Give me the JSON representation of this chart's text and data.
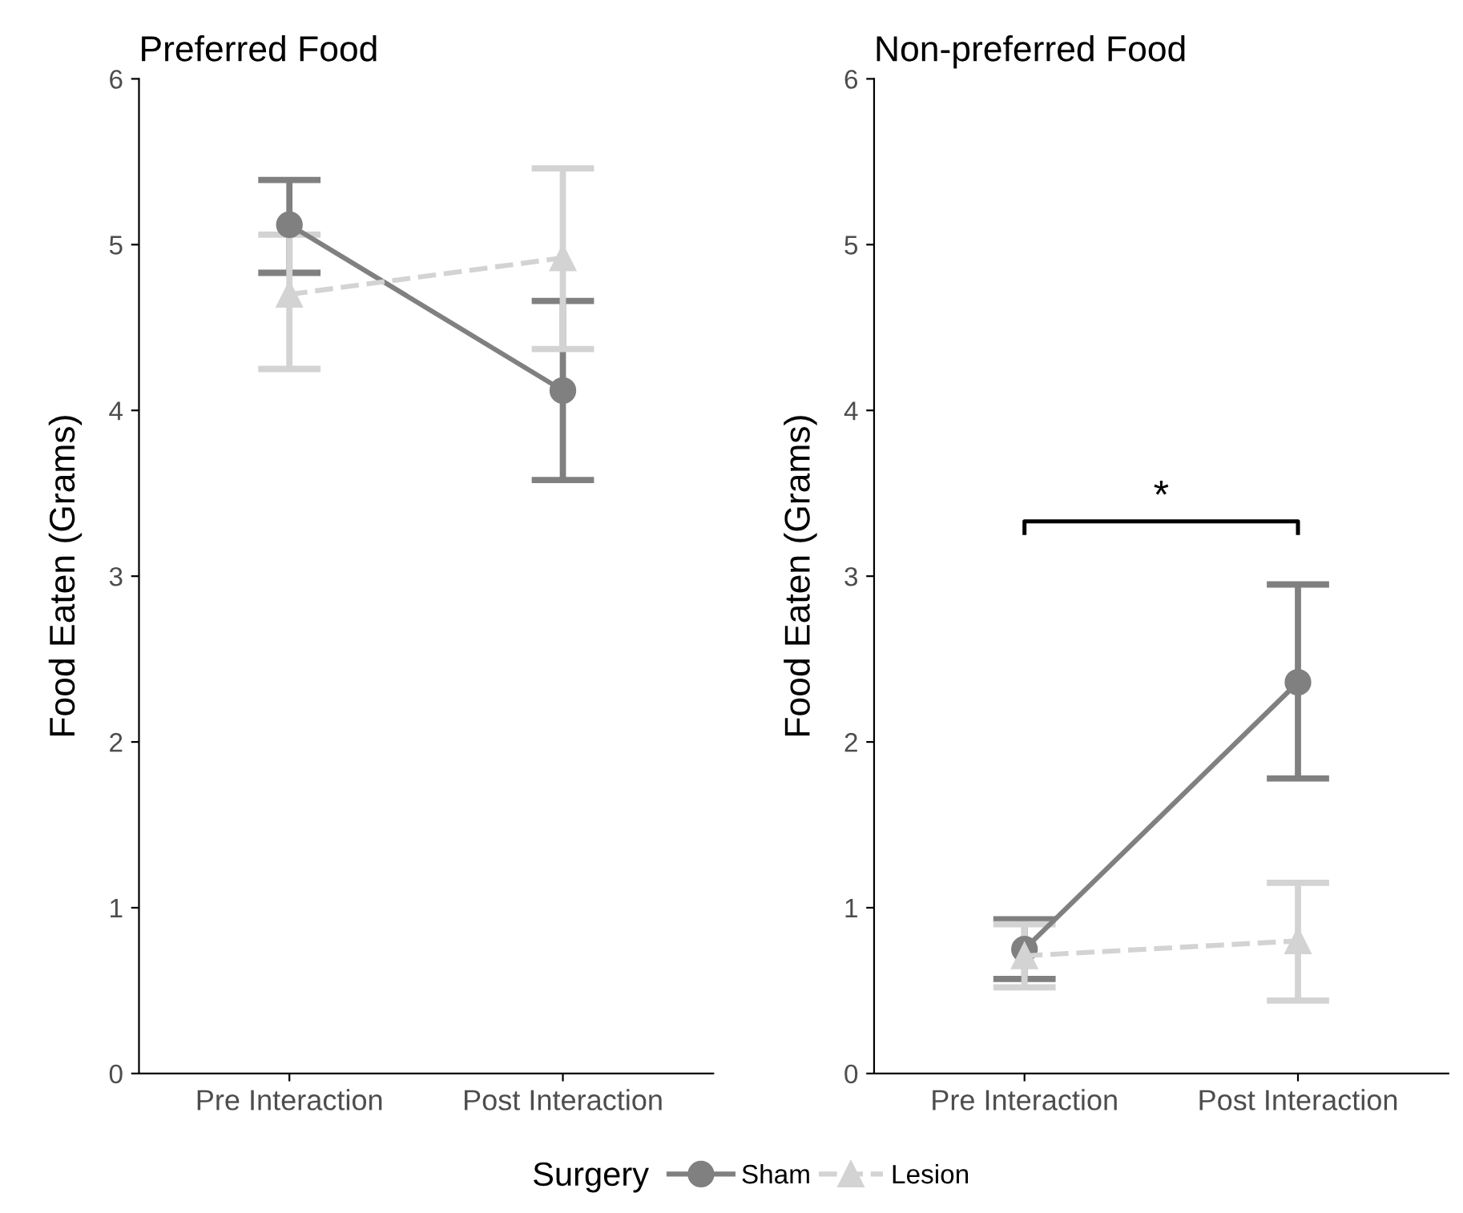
{
  "chart_data": [
    {
      "type": "line",
      "title": "Preferred Food",
      "ylabel": "Food Eaten (Grams)",
      "legend_title": "Surgery",
      "legend": "bottom",
      "categories": [
        "Pre Interaction",
        "Post Interaction"
      ],
      "ylim": [
        0,
        6
      ],
      "yticks": [
        0,
        1,
        2,
        3,
        4,
        5,
        6
      ],
      "grid": false,
      "series": [
        {
          "name": "Sham",
          "color": "#808080",
          "marker": "circle",
          "line_style": "solid",
          "values": [
            5.12,
            4.12
          ],
          "errors": [
            [
              4.83,
              5.39
            ],
            [
              3.58,
              4.66
            ]
          ]
        },
        {
          "name": "Lesion",
          "color": "#d3d3d3",
          "marker": "triangle",
          "line_style": "dashed",
          "values": [
            4.7,
            4.92
          ],
          "errors": [
            [
              4.25,
              5.06
            ],
            [
              4.37,
              5.46
            ]
          ]
        }
      ]
    },
    {
      "type": "line",
      "title": "Non-preferred Food",
      "ylabel": "Food Eaten (Grams)",
      "annotations": [
        "*"
      ],
      "categories": [
        "Pre Interaction",
        "Post Interaction"
      ],
      "ylim": [
        0,
        6
      ],
      "yticks": [
        0,
        1,
        2,
        3,
        4,
        5,
        6
      ],
      "grid": false,
      "series": [
        {
          "color": "#808080",
          "marker": "circle",
          "line_style": "solid",
          "values": [
            0.75,
            2.36
          ],
          "errors": [
            [
              0.57,
              0.93
            ],
            [
              1.78,
              2.95
            ]
          ]
        },
        {
          "color": "#d3d3d3",
          "marker": "triangle",
          "line_style": "dashed",
          "values": [
            0.71,
            0.8
          ],
          "errors": [
            [
              0.52,
              0.9
            ],
            [
              0.44,
              1.15
            ]
          ]
        }
      ]
    }
  ]
}
